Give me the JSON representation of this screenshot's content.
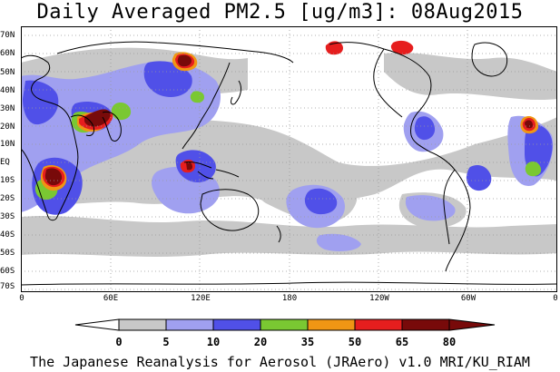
{
  "title": "Daily Averaged PM2.5 [ug/m3]: 08Aug2015",
  "footer": "The Japanese Reanalysis for Aerosol (JRAero) v1.0 MRI/KU_RIAM",
  "lat_labels": [
    "70N",
    "60N",
    "50N",
    "40N",
    "30N",
    "20N",
    "10N",
    "EQ",
    "10S",
    "20S",
    "30S",
    "40S",
    "50S",
    "60S",
    "70S"
  ],
  "lon_labels": [
    "0",
    "60E",
    "120E",
    "180",
    "120W",
    "60W",
    "0"
  ],
  "colorbar": {
    "labels": [
      "0",
      "5",
      "10",
      "20",
      "35",
      "50",
      "65",
      "80"
    ],
    "colors": [
      "#ffffff",
      "#c8c8c8",
      "#a0a0f0",
      "#5050e8",
      "#7ac832",
      "#f09614",
      "#e61e1e",
      "#780a0a"
    ]
  },
  "colors": {
    "bin_0_5": "#ffffff",
    "bin_5_10": "#c8c8c8",
    "bin_10_20": "#a0a0f0",
    "bin_20_35": "#5050e8",
    "bin_35_50": "#7ac832",
    "bin_50_65": "#f09614",
    "bin_65_80": "#e61e1e",
    "bin_80_plus": "#780a0a",
    "coastline": "#000000",
    "gridline": "#999999"
  }
}
